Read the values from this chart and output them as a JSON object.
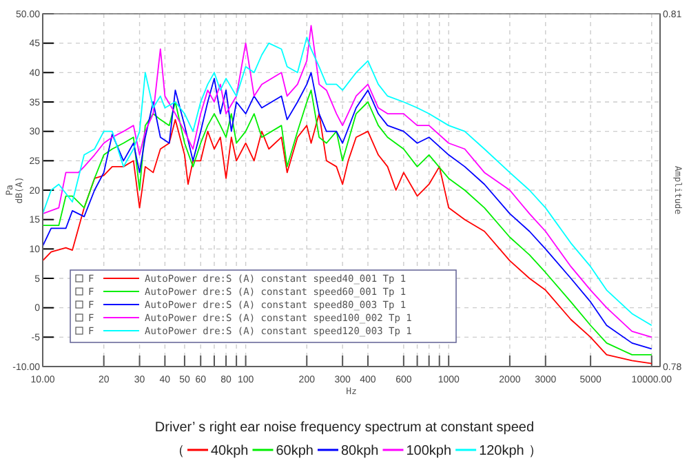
{
  "chart_data": {
    "type": "line",
    "title": "Driver’ s right ear noise frequency spectrum at constant speed",
    "xlabel": "Hz",
    "ylabel": "Pa\ndB(A)",
    "y2label": "Amplitude",
    "log": "x",
    "grid": true,
    "legend": "bottom",
    "line_style": "solid",
    "marker": "none",
    "xlim": [
      10,
      11000
    ],
    "xticks": [
      {
        "value": 10,
        "label": "10.00"
      },
      20,
      30,
      40,
      50,
      60,
      {
        "value": 70,
        "label": null
      },
      80,
      {
        "value": 90,
        "label": null
      },
      100,
      200,
      300,
      400,
      600,
      {
        "value": 700,
        "label": null
      },
      {
        "value": 800,
        "label": null
      },
      {
        "value": 900,
        "label": null
      },
      1000,
      2000,
      3000,
      5000,
      {
        "value": 10000,
        "label": "10000.00"
      }
    ],
    "ylim": [
      -10,
      50
    ],
    "yticks": [
      {
        "value": -10,
        "label": "-10.00"
      },
      -5,
      0,
      5,
      10,
      15,
      20,
      25,
      30,
      35,
      40,
      45,
      {
        "value": 50,
        "label": "50.00"
      }
    ],
    "y2lim": [
      0.78,
      0.81
    ],
    "y2ticks": [
      0.78,
      0.81
    ],
    "annotations": [
      "F AutoPower dre:S (A) constant speed40_001 Tp 1",
      "F AutoPower dre:S (A) constant speed60_001 Tp 1",
      "F AutoPower dre:S (A) constant speed80_003 Tp 1",
      "F AutoPower dre:S (A) constant speed100_002 Tp 1",
      "F AutoPower dre:S (A) constant speed120_003 Tp 1",
      "（",
      "）"
    ],
    "series": [
      {
        "name": "40kph",
        "color": "#ff0000",
        "x": [
          10,
          11,
          13,
          14,
          16,
          18,
          20,
          22,
          25,
          28,
          30,
          32,
          35,
          38,
          42,
          45,
          50,
          52,
          55,
          60,
          65,
          70,
          75,
          80,
          85,
          90,
          100,
          110,
          120,
          130,
          150,
          160,
          180,
          200,
          210,
          230,
          250,
          280,
          300,
          320,
          350,
          400,
          450,
          500,
          550,
          600,
          700,
          800,
          900,
          1000,
          1200,
          1500,
          2000,
          2500,
          3000,
          4000,
          5000,
          6000,
          8000,
          10000
        ],
        "values": [
          8,
          9.5,
          10.2,
          9.8,
          17,
          22,
          22.5,
          24,
          24,
          25,
          17,
          24,
          23,
          27,
          28,
          32,
          26,
          21,
          25,
          25,
          30,
          27,
          29,
          22,
          29,
          25,
          28,
          25,
          30,
          27,
          29,
          23,
          29,
          31,
          28,
          33,
          25,
          24,
          21,
          25,
          29,
          30,
          26,
          24,
          20,
          23,
          19,
          21,
          24,
          17,
          15,
          13,
          8,
          5,
          3,
          -2,
          -5,
          -8,
          -9,
          -9.5
        ]
      },
      {
        "name": "60kph",
        "color": "#00ee00",
        "x": [
          10,
          12,
          13,
          14,
          16,
          18,
          20,
          22,
          25,
          28,
          30,
          32,
          35,
          38,
          42,
          45,
          50,
          55,
          60,
          65,
          70,
          75,
          80,
          85,
          90,
          100,
          110,
          120,
          150,
          160,
          180,
          200,
          210,
          230,
          250,
          280,
          300,
          350,
          400,
          450,
          500,
          600,
          700,
          800,
          1000,
          1200,
          1500,
          2000,
          2500,
          3000,
          4000,
          5000,
          6000,
          8000,
          10000
        ],
        "values": [
          14,
          14,
          19,
          19,
          17,
          22,
          26,
          27,
          28,
          29,
          20,
          31,
          33,
          32,
          31,
          35,
          28,
          24,
          28,
          31,
          33,
          31,
          29,
          33,
          28,
          30,
          33,
          29,
          31,
          24,
          30,
          35,
          37,
          29,
          28,
          30,
          25,
          33,
          35,
          31,
          29,
          27,
          24,
          26,
          22,
          20,
          17,
          12,
          9,
          6,
          1,
          -3,
          -6,
          -8,
          -8
        ]
      },
      {
        "name": "80kph",
        "color": "#0000ff",
        "x": [
          10,
          11,
          13,
          14,
          16,
          18,
          20,
          22,
          25,
          28,
          30,
          32,
          35,
          38,
          42,
          45,
          50,
          55,
          60,
          65,
          70,
          75,
          80,
          85,
          90,
          100,
          110,
          120,
          150,
          160,
          180,
          200,
          210,
          230,
          250,
          280,
          300,
          350,
          400,
          450,
          500,
          600,
          700,
          800,
          1000,
          1200,
          1500,
          2000,
          2500,
          3000,
          4000,
          5000,
          6000,
          8000,
          10000
        ],
        "values": [
          10.5,
          13.5,
          13.5,
          16.5,
          15.5,
          20,
          23,
          29.5,
          25,
          28,
          23,
          29,
          35,
          29,
          28,
          37,
          31,
          25,
          30,
          35,
          39,
          33,
          37,
          30,
          35,
          33,
          36,
          34,
          36,
          32,
          35,
          38,
          40,
          33,
          30,
          30,
          28,
          34,
          37,
          33,
          31,
          30,
          28,
          29,
          26,
          24,
          21,
          16,
          13,
          10,
          5,
          1,
          -3,
          -6,
          -7
        ]
      },
      {
        "name": "100kph",
        "color": "#ff00ff",
        "x": [
          10,
          12,
          13,
          15,
          16,
          18,
          20,
          22,
          25,
          28,
          30,
          32,
          35,
          38,
          40,
          45,
          50,
          55,
          60,
          65,
          70,
          75,
          80,
          90,
          100,
          110,
          120,
          150,
          160,
          180,
          200,
          210,
          230,
          250,
          280,
          300,
          350,
          400,
          450,
          500,
          600,
          700,
          800,
          1000,
          1200,
          1500,
          2000,
          2500,
          3000,
          4000,
          5000,
          6000,
          8000,
          10000
        ],
        "values": [
          16,
          17,
          23,
          23,
          24,
          26,
          28,
          29,
          30,
          31,
          26,
          30,
          33,
          44,
          36,
          33,
          30,
          27,
          33,
          37,
          35,
          38,
          33,
          36,
          45,
          36,
          38,
          40,
          36,
          38,
          42,
          48,
          38,
          37,
          33,
          31,
          36,
          38,
          34,
          33,
          33,
          31,
          31,
          28,
          27,
          23,
          20,
          16,
          13,
          7,
          3,
          0,
          -4,
          -5
        ]
      },
      {
        "name": "120kph",
        "color": "#00ffff",
        "x": [
          10,
          11,
          12,
          14,
          16,
          18,
          20,
          22,
          25,
          28,
          30,
          32,
          35,
          38,
          40,
          45,
          50,
          55,
          60,
          65,
          70,
          75,
          80,
          90,
          100,
          110,
          120,
          130,
          150,
          160,
          180,
          200,
          210,
          230,
          250,
          280,
          300,
          350,
          400,
          450,
          500,
          600,
          700,
          800,
          1000,
          1200,
          1500,
          2000,
          2500,
          3000,
          4000,
          5000,
          6000,
          8000,
          10000
        ],
        "values": [
          16,
          20,
          21,
          18,
          26,
          27,
          30,
          30,
          24,
          27,
          30,
          40,
          34,
          36,
          34,
          35,
          33,
          30,
          35,
          38,
          40,
          37,
          39,
          36,
          41,
          40,
          43,
          45,
          44,
          41,
          40,
          46,
          44,
          41,
          38,
          38,
          37,
          40,
          42,
          38,
          36,
          35,
          34,
          33,
          31,
          30,
          27,
          23,
          20,
          17,
          11,
          7,
          3,
          -1,
          -3
        ]
      }
    ]
  }
}
